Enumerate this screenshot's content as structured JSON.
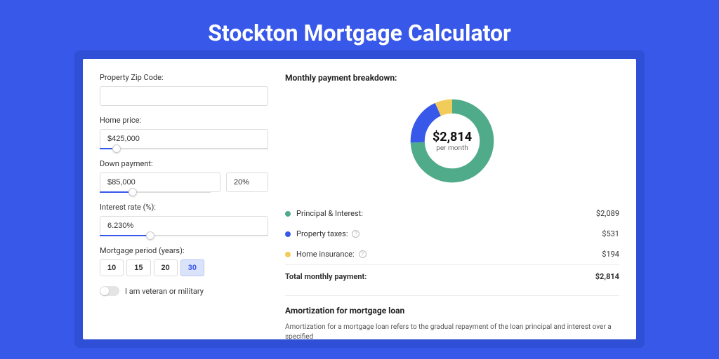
{
  "page": {
    "title": "Stockton Mortgage Calculator",
    "background_color": "#3858e9",
    "accent_color": "#3858e9"
  },
  "form": {
    "zip": {
      "label": "Property Zip Code:",
      "value": ""
    },
    "home_price": {
      "label": "Home price:",
      "value": "$425,000",
      "slider_pct": 10
    },
    "down_payment": {
      "label": "Down payment:",
      "amount": "$85,000",
      "percent": "20%",
      "slider_pct": 30
    },
    "interest_rate": {
      "label": "Interest rate (%):",
      "value": "6.230%",
      "slider_pct": 30
    },
    "mortgage_period": {
      "label": "Mortgage period (years):",
      "options": [
        "10",
        "15",
        "20",
        "30"
      ],
      "selected": "30"
    },
    "veteran": {
      "label": "I am veteran or military",
      "checked": false
    }
  },
  "breakdown": {
    "title": "Monthly payment breakdown:",
    "donut": {
      "center_value": "$2,814",
      "center_sub": "per month",
      "series": [
        {
          "name": "Principal & Interest",
          "color": "#4fab8a",
          "pct": 74.2
        },
        {
          "name": "Property taxes",
          "color": "#3858e9",
          "pct": 18.9
        },
        {
          "name": "Home insurance",
          "color": "#f2cc5a",
          "pct": 6.9
        }
      ]
    },
    "items": [
      {
        "label": "Principal & Interest:",
        "color": "#4fab8a",
        "amount": "$2,089",
        "info": false
      },
      {
        "label": "Property taxes:",
        "color": "#3858e9",
        "amount": "$531",
        "info": true
      },
      {
        "label": "Home insurance:",
        "color": "#f2cc5a",
        "amount": "$194",
        "info": true
      }
    ],
    "total": {
      "label": "Total monthly payment:",
      "amount": "$2,814"
    }
  },
  "amortization": {
    "title": "Amortization for mortgage loan",
    "text": "Amortization for a mortgage loan refers to the gradual repayment of the loan principal and interest over a specified"
  }
}
